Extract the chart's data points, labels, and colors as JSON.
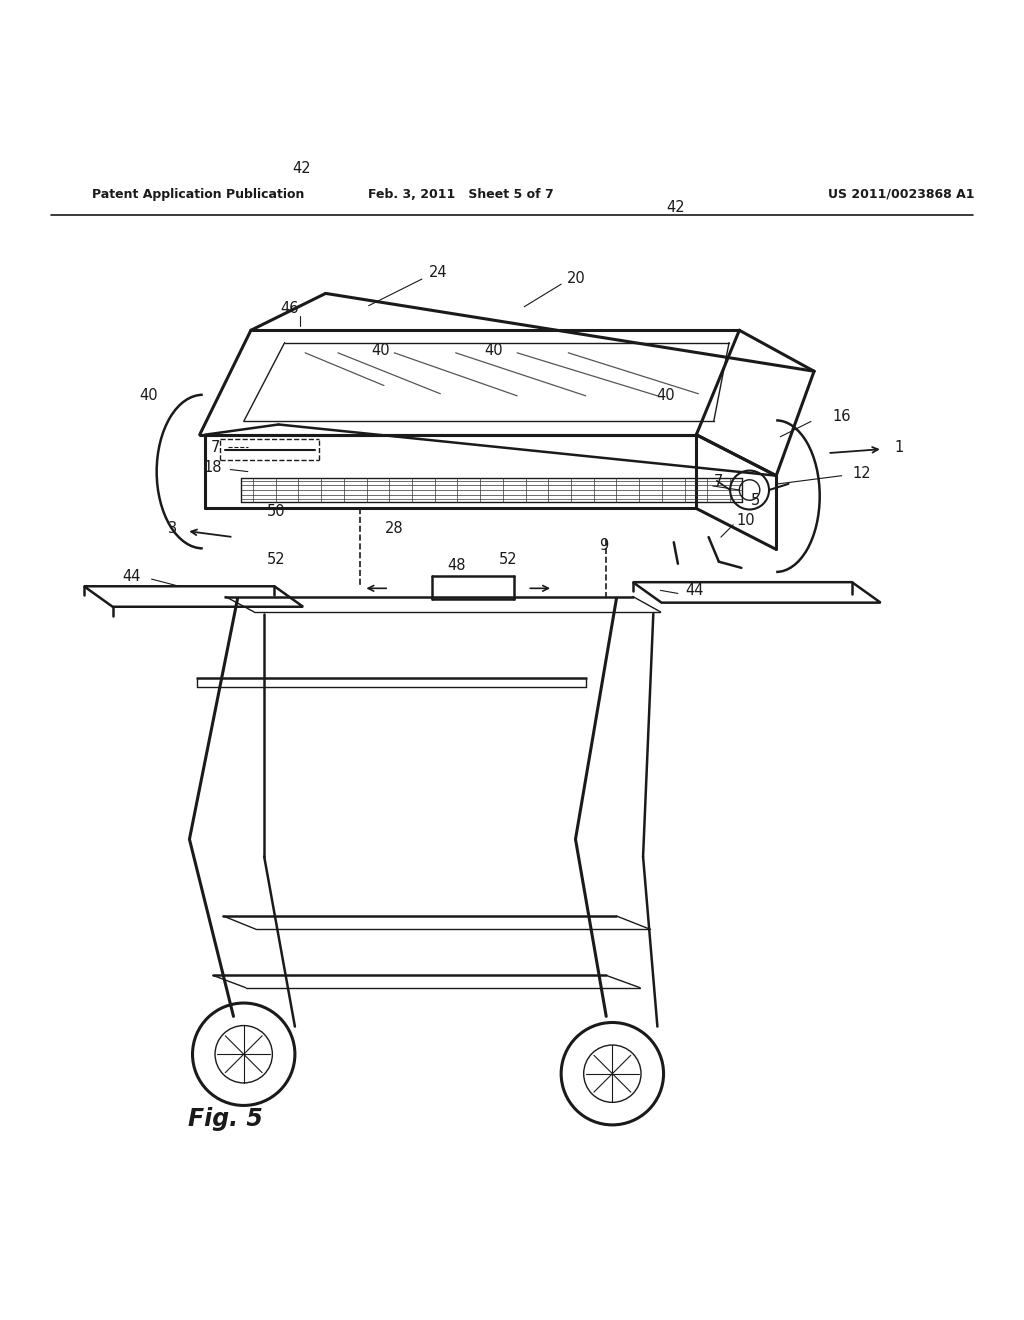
{
  "bg_color": "#ffffff",
  "line_color": "#1a1a1a",
  "fig_width": 10.24,
  "fig_height": 13.2,
  "header_left": "Patent Application Publication",
  "header_mid": "Feb. 3, 2011   Sheet 5 of 7",
  "header_right": "US 2011/0023868 A1",
  "fig_label": "Fig. 5"
}
